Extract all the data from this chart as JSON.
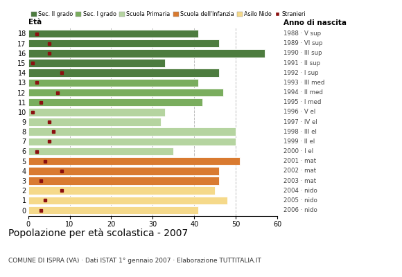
{
  "ages": [
    18,
    17,
    16,
    15,
    14,
    13,
    12,
    11,
    10,
    9,
    8,
    7,
    6,
    5,
    4,
    3,
    2,
    1,
    0
  ],
  "bar_values": [
    41,
    46,
    57,
    33,
    46,
    41,
    47,
    42,
    33,
    32,
    50,
    50,
    35,
    51,
    46,
    46,
    45,
    48,
    41
  ],
  "stranieri": [
    2,
    5,
    5,
    1,
    8,
    2,
    7,
    3,
    1,
    5,
    6,
    5,
    2,
    4,
    8,
    3,
    8,
    4,
    3
  ],
  "anno_nascita": [
    "1988 · V sup",
    "1989 · VI sup",
    "1990 · III sup",
    "1991 · II sup",
    "1992 · I sup",
    "1993 · III med",
    "1994 · II med",
    "1995 · I med",
    "1996 · V el",
    "1997 · IV el",
    "1998 · III el",
    "1999 · II el",
    "2000 · I el",
    "2001 · mat",
    "2002 · mat",
    "2003 · mat",
    "2004 · nido",
    "2005 · nido",
    "2006 · nido"
  ],
  "colors": {
    "sec2": "#4d7c3f",
    "sec1": "#7aad5e",
    "primaria": "#b5d4a0",
    "infanzia": "#d97a30",
    "nido": "#f5d98a"
  },
  "bar_colors": [
    "sec2",
    "sec2",
    "sec2",
    "sec2",
    "sec2",
    "sec1",
    "sec1",
    "sec1",
    "primaria",
    "primaria",
    "primaria",
    "primaria",
    "primaria",
    "infanzia",
    "infanzia",
    "infanzia",
    "nido",
    "nido",
    "nido"
  ],
  "legend_labels": [
    "Sec. II grado",
    "Sec. I grado",
    "Scuola Primaria",
    "Scuola dell'Infanzia",
    "Asilo Nido",
    "Stranieri"
  ],
  "legend_colors": [
    "#4d7c3f",
    "#7aad5e",
    "#b5d4a0",
    "#d97a30",
    "#f5d98a",
    "#8b1010"
  ],
  "title": "Popolazione per età scolastica - 2007",
  "subtitle": "COMUNE DI ISPRA (VA) · Dati ISTAT 1° gennaio 2007 · Elaborazione TUTTITALIA.IT",
  "xlabel_eta": "Età",
  "xlabel_anno": "Anno di nascita",
  "xlim": [
    0,
    60
  ],
  "xticks": [
    0,
    10,
    20,
    30,
    40,
    50,
    60
  ],
  "bg_color": "#ffffff",
  "grid_color": "#bbbbbb",
  "bar_height": 0.82,
  "stranieri_color": "#8b1010"
}
